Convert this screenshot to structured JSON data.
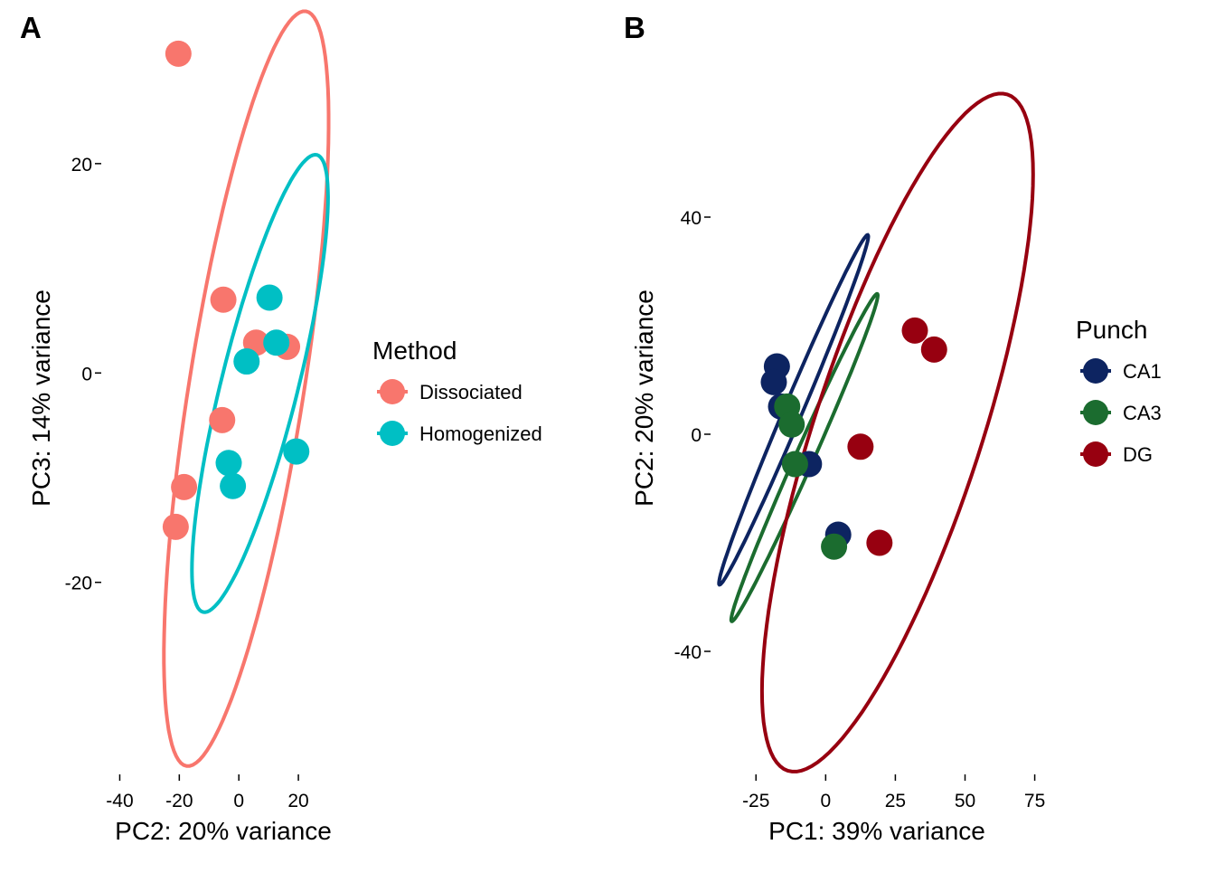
{
  "chart_data": [
    {
      "type": "scatter",
      "panel_label": "A",
      "xlabel": "PC2: 20% variance",
      "ylabel": "PC3: 14% variance",
      "xlim": [
        -45,
        30
      ],
      "ylim": [
        -38,
        32
      ],
      "xticks": [
        -40,
        -20,
        0,
        20
      ],
      "yticks": [
        -20,
        0,
        20
      ],
      "grid": false,
      "legend": {
        "title": "Method",
        "placement": "right"
      },
      "series": [
        {
          "name": "Dissociated",
          "color": "#F8766D",
          "points": [
            {
              "x": -20.3,
              "y": 30.5
            },
            {
              "x": -5.2,
              "y": 7.0
            },
            {
              "x": 5.8,
              "y": 2.9
            },
            {
              "x": 16.2,
              "y": 2.5
            },
            {
              "x": -5.6,
              "y": -4.5
            },
            {
              "x": -18.4,
              "y": -10.9
            },
            {
              "x": -21.2,
              "y": -14.7
            }
          ],
          "ellipse": {
            "cx": 2.5,
            "cy": -1.5,
            "rx": 19.3,
            "ry": 36.5,
            "angle_deg": 9.0
          }
        },
        {
          "name": "Homogenized",
          "color": "#00BFC4",
          "points": [
            {
              "x": 10.3,
              "y": 7.2
            },
            {
              "x": 12.6,
              "y": 2.9
            },
            {
              "x": 2.6,
              "y": 1.1
            },
            {
              "x": 19.3,
              "y": -7.5
            },
            {
              "x": -3.4,
              "y": -8.6
            },
            {
              "x": -2.0,
              "y": -10.8
            }
          ],
          "ellipse": {
            "cx": 7.1,
            "cy": -1.0,
            "rx": 12.9,
            "ry": 22.5,
            "angle_deg": 14.0
          }
        }
      ]
    },
    {
      "type": "scatter",
      "panel_label": "B",
      "xlabel": "PC1: 39% variance",
      "ylabel": "PC2: 20% variance",
      "xlim": [
        -40,
        80
      ],
      "ylim": [
        -62,
        73
      ],
      "xticks": [
        -25,
        0,
        25,
        50,
        75
      ],
      "yticks": [
        -40,
        0,
        40
      ],
      "grid": false,
      "legend": {
        "title": "Punch",
        "placement": "right"
      },
      "series": [
        {
          "name": "CA1",
          "color": "#0D2461",
          "points": [
            {
              "x": -17.5,
              "y": 12.5
            },
            {
              "x": -18.6,
              "y": 9.6
            },
            {
              "x": -16.0,
              "y": 5.1
            },
            {
              "x": -6.0,
              "y": -5.5
            },
            {
              "x": 4.5,
              "y": -18.5
            }
          ],
          "ellipse": {
            "cx": -11.5,
            "cy": 4.5,
            "rx": 3.3,
            "ry": 35.0,
            "angle_deg": 23.0
          }
        },
        {
          "name": "CA3",
          "color": "#1B6C2F",
          "points": [
            {
              "x": -13.8,
              "y": 5.1
            },
            {
              "x": -12.2,
              "y": 1.8
            },
            {
              "x": -11.0,
              "y": -5.5
            },
            {
              "x": 3.0,
              "y": -20.7
            }
          ],
          "ellipse": {
            "cx": -7.6,
            "cy": -4.3,
            "rx": 3.3,
            "ry": 33.0,
            "angle_deg": 24.0
          }
        },
        {
          "name": "DG",
          "color": "#970010",
          "points": [
            {
              "x": 32.0,
              "y": 19.1
            },
            {
              "x": 38.9,
              "y": 15.6
            },
            {
              "x": 12.5,
              "y": -2.3
            },
            {
              "x": 19.3,
              "y": -20.0
            }
          ],
          "ellipse": {
            "cx": 25.8,
            "cy": 0.3,
            "rx": 30.0,
            "ry": 65.5,
            "angle_deg": 18.0
          }
        }
      ]
    }
  ]
}
